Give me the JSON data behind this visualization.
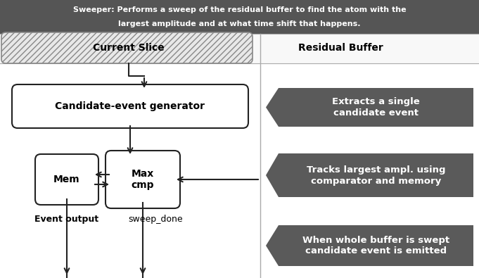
{
  "title_bg_color": "#555555",
  "title_text_line1": "Sweeper: Performs a sweep of the residual buffer to find the atom with the",
  "title_text_line2": "largest amplitude and at what time shift that happens.",
  "title_text_color": "#ffffff",
  "current_slice_label": "Current Slice",
  "residual_buffer_label": "Residual Buffer",
  "box_candidate_label": "Candidate-event generator",
  "box_max_label": "Max\ncmp",
  "box_mem_label": "Mem",
  "arrow_color": "#222222",
  "box_border_color": "#222222",
  "box_fill_color": "#ffffff",
  "dark_box_color": "#5a5a5a",
  "dark_box_text_color": "#ffffff",
  "annotation1": "Extracts a single\ncandidate event",
  "annotation2": "Tracks largest ampl. using\ncomparator and memory",
  "annotation3": "When whole buffer is swept\ncandidate event is emitted",
  "label_event_output": "Event output",
  "label_sweep_done": "sweep_done",
  "fig_bg": "#ffffff",
  "header_bg": "#f8f8f8",
  "divider_color": "#aaaaaa",
  "hatch_color": "#aaaaaa"
}
